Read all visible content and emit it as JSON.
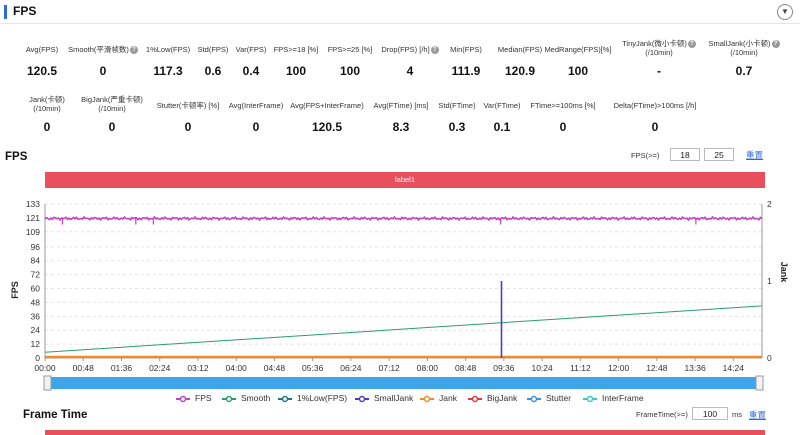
{
  "header": {
    "title": "FPS",
    "collapse_icon": "chevron-down-icon"
  },
  "stats_row1": [
    {
      "label": "Avg(FPS)",
      "value": "120.5",
      "help": false,
      "cx": 42
    },
    {
      "label": "Smooth(平滑帧数)",
      "value": "0",
      "help": true,
      "cx": 103
    },
    {
      "label": "1%Low(FPS)",
      "value": "117.3",
      "help": false,
      "cx": 168
    },
    {
      "label": "Std(FPS)",
      "value": "0.6",
      "help": false,
      "cx": 213
    },
    {
      "label": "Var(FPS)",
      "value": "0.4",
      "help": false,
      "cx": 251
    },
    {
      "label": "FPS>=18 [%]",
      "value": "100",
      "help": false,
      "cx": 296
    },
    {
      "label": "FPS>=25 [%]",
      "value": "100",
      "help": false,
      "cx": 350
    },
    {
      "label": "Drop(FPS) [/h]",
      "value": "4",
      "help": true,
      "cx": 410
    },
    {
      "label": "Min(FPS)",
      "value": "111.9",
      "help": false,
      "cx": 466
    },
    {
      "label": "Median(FPS)",
      "value": "120.9",
      "help": false,
      "cx": 520
    },
    {
      "label": "MedRange(FPS)[%]",
      "value": "100",
      "help": false,
      "cx": 578
    },
    {
      "label": "TinyJank(微小卡顿)\n(/10min)",
      "value": "-",
      "help": true,
      "cx": 659
    },
    {
      "label": "SmallJank(小卡顿)\n(/10min)",
      "value": "0.7",
      "help": true,
      "cx": 744
    }
  ],
  "stats_row2": [
    {
      "label": "Jank(卡顿)\n(/10min)",
      "value": "0",
      "help": false,
      "cx": 47
    },
    {
      "label": "BigJank(严重卡顿)\n(/10min)",
      "value": "0",
      "help": false,
      "cx": 112
    },
    {
      "label": "Stutter(卡顿率) [%]",
      "value": "0",
      "help": false,
      "cx": 188
    },
    {
      "label": "Avg(InterFrame)",
      "value": "0",
      "help": false,
      "cx": 256
    },
    {
      "label": "Avg(FPS+InterFrame)",
      "value": "120.5",
      "help": false,
      "cx": 327
    },
    {
      "label": "Avg(FTime) [ms]",
      "value": "8.3",
      "help": false,
      "cx": 401
    },
    {
      "label": "Std(FTime)",
      "value": "0.3",
      "help": false,
      "cx": 457
    },
    {
      "label": "Var(FTime)",
      "value": "0.1",
      "help": false,
      "cx": 502
    },
    {
      "label": "FTime>=100ms [%]",
      "value": "0",
      "help": false,
      "cx": 563
    },
    {
      "label": "Delta(FTime)>100ms [/h]",
      "value": "0",
      "help": false,
      "cx": 655
    }
  ],
  "fps_section": {
    "title": "FPS",
    "threshold_label": "FPS(>=)",
    "threshold_1": "18",
    "threshold_2": "25",
    "reset_label": "重置",
    "band_label": "label1"
  },
  "frame_time_section": {
    "title": "Frame Time",
    "threshold_label": "FrameTime(>=)",
    "threshold_value": "100",
    "unit": "ms",
    "reset_label": "重置"
  },
  "chart_data": {
    "type": "line",
    "y_left_label": "FPS",
    "y_right_label": "Jank",
    "y_left_ticks": [
      0,
      12,
      24,
      36,
      48,
      60,
      72,
      84,
      96,
      109,
      121,
      133
    ],
    "y_left_range": [
      0,
      133
    ],
    "y_right_ticks": [
      0,
      1,
      2
    ],
    "y_right_range": [
      0,
      2
    ],
    "x_ticks": [
      "00:00",
      "00:48",
      "01:36",
      "02:24",
      "03:12",
      "04:00",
      "04:48",
      "05:36",
      "06:24",
      "07:12",
      "08:00",
      "08:48",
      "09:36",
      "10:24",
      "11:12",
      "12:00",
      "12:48",
      "13:36",
      "14:24"
    ],
    "x_range_seconds": [
      0,
      900
    ],
    "fps_level": 120.5,
    "fps_color": "#c043c0",
    "fps_dips_time": [
      "00:22",
      "01:54",
      "02:16",
      "09:32",
      "13:37"
    ],
    "smooth_start": 5,
    "smooth_end": 45,
    "smooth_color": "#2a9d6f",
    "low_color": "#1f7a7a",
    "smalljank_time": "09:33",
    "smalljank_value": 1,
    "smalljank_color": "#4a3fc0",
    "jank_color": "#f08a2c",
    "bigjank_color": "#e03a3a",
    "stutter_color": "#3a8fe0",
    "interframe_color": "#3ec8c8",
    "legend": [
      "FPS",
      "Smooth",
      "1%Low(FPS)",
      "SmallJank",
      "Jank",
      "BigJank",
      "Stutter",
      "InterFrame"
    ],
    "grid": true,
    "legend_position": "bottom"
  }
}
